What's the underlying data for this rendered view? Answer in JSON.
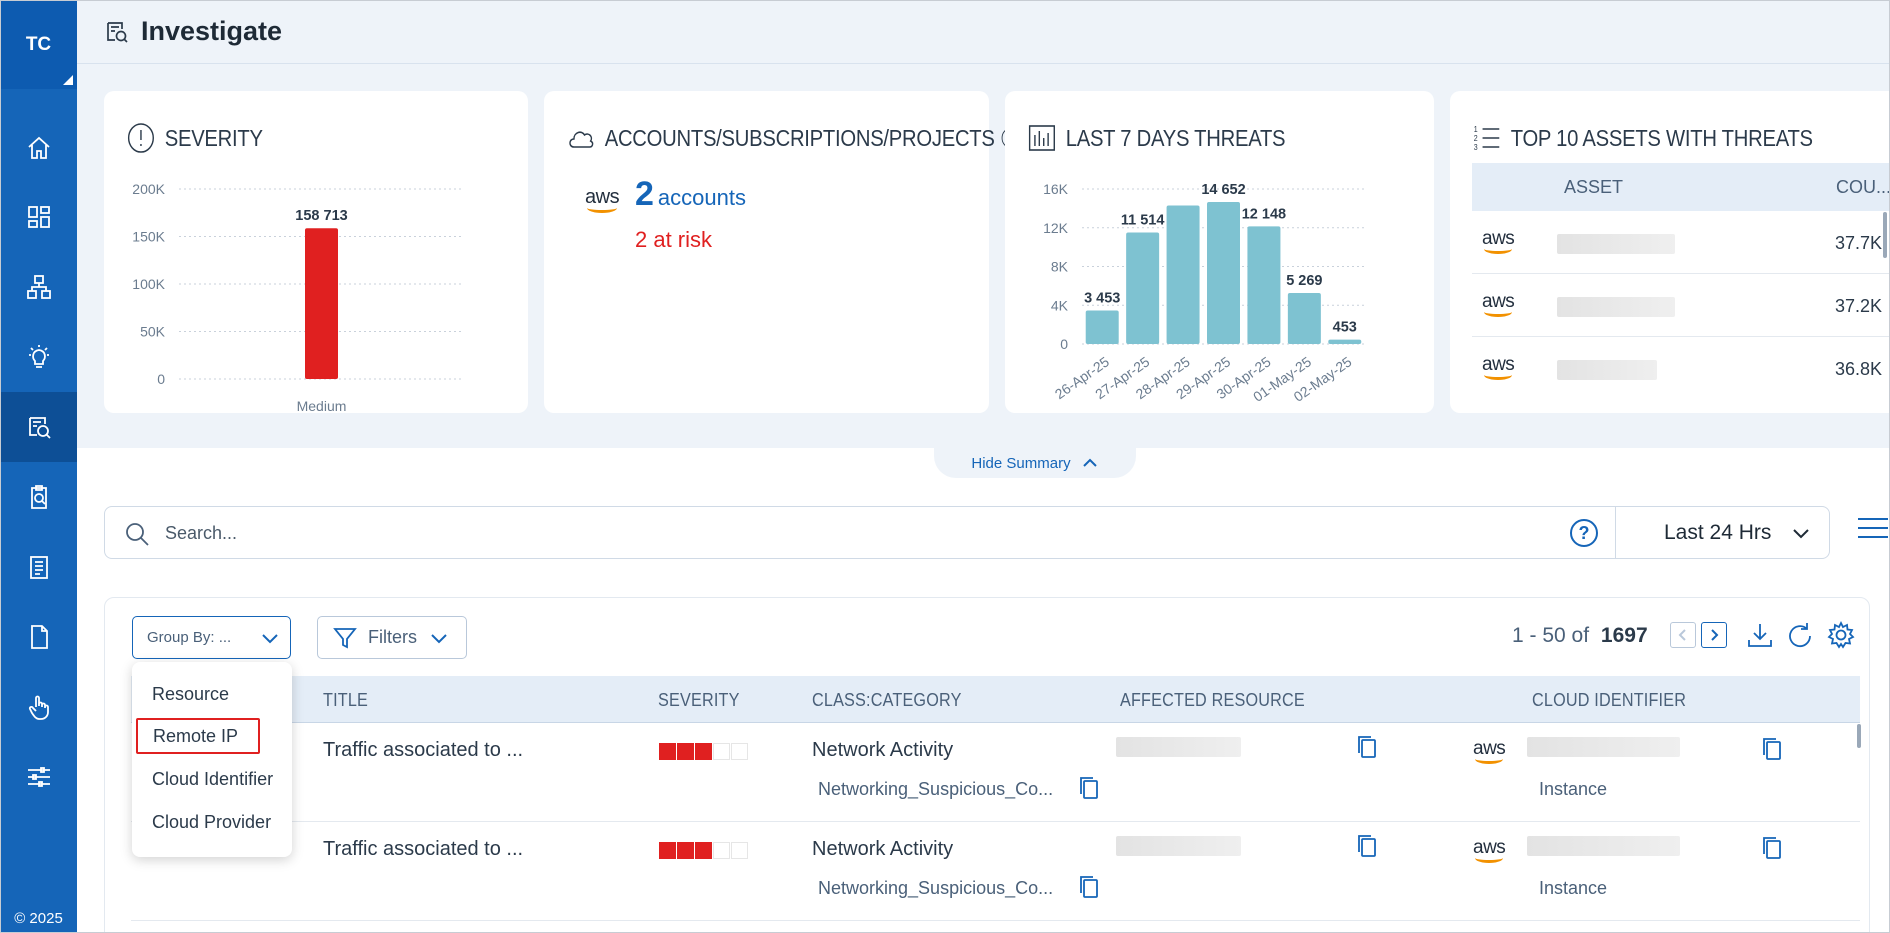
{
  "user": {
    "initials": "TC"
  },
  "footer": {
    "copyright": "© 2025"
  },
  "header": {
    "title": "Investigate"
  },
  "summary": {
    "severity": {
      "title": "SEVERITY"
    },
    "accounts": {
      "title": "ACCOUNTS/SUBSCRIPTIONS/PROJECTS",
      "provider": "aws",
      "count": "2",
      "count_label": "accounts",
      "risk": "2 at risk"
    },
    "threats": {
      "title": "LAST 7 DAYS THREATS"
    },
    "top_assets": {
      "title": "TOP 10 ASSETS WITH THREATS",
      "columns": [
        "ASSET",
        "COU..."
      ],
      "rows": [
        {
          "provider": "aws",
          "count": "37.7K"
        },
        {
          "provider": "aws",
          "count": "37.2K"
        },
        {
          "provider": "aws",
          "count": "36.8K"
        }
      ]
    },
    "hide_label": "Hide Summary"
  },
  "chart_data": [
    {
      "type": "bar",
      "title": "SEVERITY",
      "categories": [
        "Medium"
      ],
      "values": [
        158713
      ],
      "value_labels": [
        "158 713"
      ],
      "ylim": [
        0,
        200000
      ],
      "yticks": [
        "0",
        "50K",
        "100K",
        "150K",
        "200K"
      ],
      "color": "#e02020",
      "grid": true
    },
    {
      "type": "bar",
      "title": "LAST 7 DAYS THREATS",
      "categories": [
        "26-Apr-25",
        "27-Apr-25",
        "28-Apr-25",
        "29-Apr-25",
        "30-Apr-25",
        "01-May-25",
        "02-May-25"
      ],
      "values": [
        3453,
        11514,
        14300,
        14652,
        12148,
        5269,
        453
      ],
      "value_labels": [
        "3 453",
        "11 514",
        "",
        "14 652",
        "12 148",
        "5 269",
        "453"
      ],
      "ylim": [
        0,
        16000
      ],
      "yticks": [
        "0",
        "4K",
        "8K",
        "12K",
        "16K"
      ],
      "color": "#7ec2d1",
      "grid": true
    }
  ],
  "search": {
    "placeholder": "Search...",
    "time_range": "Last 24 Hrs"
  },
  "toolbar": {
    "group_by": "Group By: ...",
    "filters": "Filters",
    "range": "1 - 50 of",
    "total": "1697"
  },
  "group_by_menu": [
    "Resource",
    "Remote IP",
    "Cloud Identifier",
    "Cloud Provider"
  ],
  "table": {
    "columns": [
      "TITLE",
      "SEVERITY",
      "CLASS:CATEGORY",
      "AFFECTED RESOURCE",
      "CLOUD IDENTIFIER"
    ],
    "rows": [
      {
        "title": "Traffic associated to ...",
        "severity_level": 3,
        "severity_max": 5,
        "class": "Network Activity",
        "category": "Networking_Suspicious_Co...",
        "provider": "aws",
        "type": "Instance"
      },
      {
        "title": "Traffic associated to ...",
        "severity_level": 3,
        "severity_max": 5,
        "class": "Network Activity",
        "category": "Networking_Suspicious_Co...",
        "provider": "aws",
        "type": "Instance"
      }
    ]
  }
}
